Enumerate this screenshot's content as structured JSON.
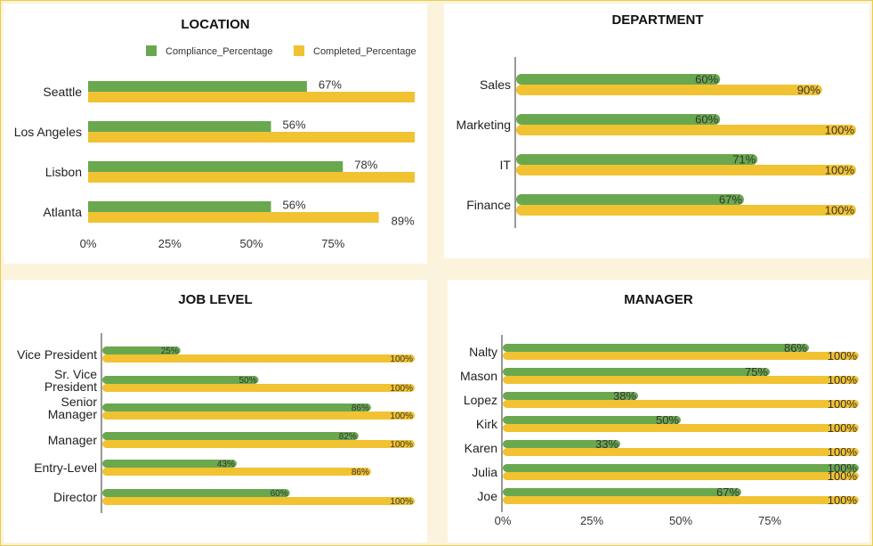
{
  "colors": {
    "compliance": "#6aa84f",
    "completed": "#f1c232"
  },
  "chart_data": [
    {
      "id": "location",
      "type": "bar",
      "orientation": "horizontal",
      "title": "LOCATION",
      "legend_position": "top-right",
      "categories": [
        "Seattle",
        "Los Angeles",
        "Lisbon",
        "Atlanta"
      ],
      "series": [
        {
          "name": "Compliance_Percentage",
          "values": [
            67,
            56,
            78,
            56
          ],
          "labels": [
            "67%",
            "56%",
            "78%",
            "56%"
          ]
        },
        {
          "name": "Completed_Percentage",
          "values": [
            100,
            100,
            100,
            89
          ],
          "labels": [
            "",
            "",
            "",
            "89%"
          ]
        }
      ],
      "xlim": [
        0,
        100
      ],
      "ticks": [
        "0%",
        "25%",
        "50%",
        "75%"
      ]
    },
    {
      "id": "department",
      "type": "bar",
      "orientation": "horizontal",
      "title": "DEPARTMENT",
      "categories": [
        "Sales",
        "Marketing",
        "IT",
        "Finance"
      ],
      "series": [
        {
          "name": "Compliance_Percentage",
          "values": [
            60,
            60,
            71,
            67
          ],
          "labels": [
            "60%",
            "60%",
            "71%",
            "67%"
          ]
        },
        {
          "name": "Completed_Percentage",
          "values": [
            90,
            100,
            100,
            100
          ],
          "labels": [
            "90%",
            "100%",
            "100%",
            "100%"
          ]
        }
      ],
      "xlim": [
        0,
        100
      ],
      "ticks": []
    },
    {
      "id": "job-level",
      "type": "bar",
      "orientation": "horizontal",
      "title": "JOB LEVEL",
      "categories": [
        "Vice President",
        "Sr. Vice President",
        "Senior Manager",
        "Manager",
        "Entry-Level",
        "Director"
      ],
      "category_lines": [
        [
          "Vice President"
        ],
        [
          "Sr. Vice",
          "President"
        ],
        [
          "Senior",
          "Manager"
        ],
        [
          "Manager"
        ],
        [
          "Entry-Level"
        ],
        [
          "Director"
        ]
      ],
      "series": [
        {
          "name": "Compliance_Percentage",
          "values": [
            25,
            50,
            86,
            82,
            43,
            60
          ],
          "labels": [
            "25%",
            "50%",
            "86%",
            "82%",
            "43%",
            "60%"
          ]
        },
        {
          "name": "Completed_Percentage",
          "values": [
            100,
            100,
            100,
            100,
            86,
            100
          ],
          "labels": [
            "100%",
            "100%",
            "100%",
            "100%",
            "86%",
            "100%"
          ]
        }
      ],
      "xlim": [
        0,
        100
      ],
      "ticks": []
    },
    {
      "id": "manager",
      "type": "bar",
      "orientation": "horizontal",
      "title": "MANAGER",
      "categories": [
        "Nalty",
        "Mason",
        "Lopez",
        "Kirk",
        "Karen",
        "Julia",
        "Joe"
      ],
      "series": [
        {
          "name": "Compliance_Percentage",
          "values": [
            86,
            75,
            38,
            50,
            33,
            100,
            67
          ],
          "labels": [
            "86%",
            "75%",
            "38%",
            "50%",
            "33%",
            "100%",
            "67%"
          ]
        },
        {
          "name": "Completed_Percentage",
          "values": [
            100,
            100,
            100,
            100,
            100,
            100,
            100
          ],
          "labels": [
            "100%",
            "100%",
            "100%",
            "100%",
            "100%",
            "100%",
            "100%"
          ]
        }
      ],
      "xlim": [
        0,
        100
      ],
      "ticks": [
        "0%",
        "25%",
        "50%",
        "75%"
      ]
    }
  ]
}
